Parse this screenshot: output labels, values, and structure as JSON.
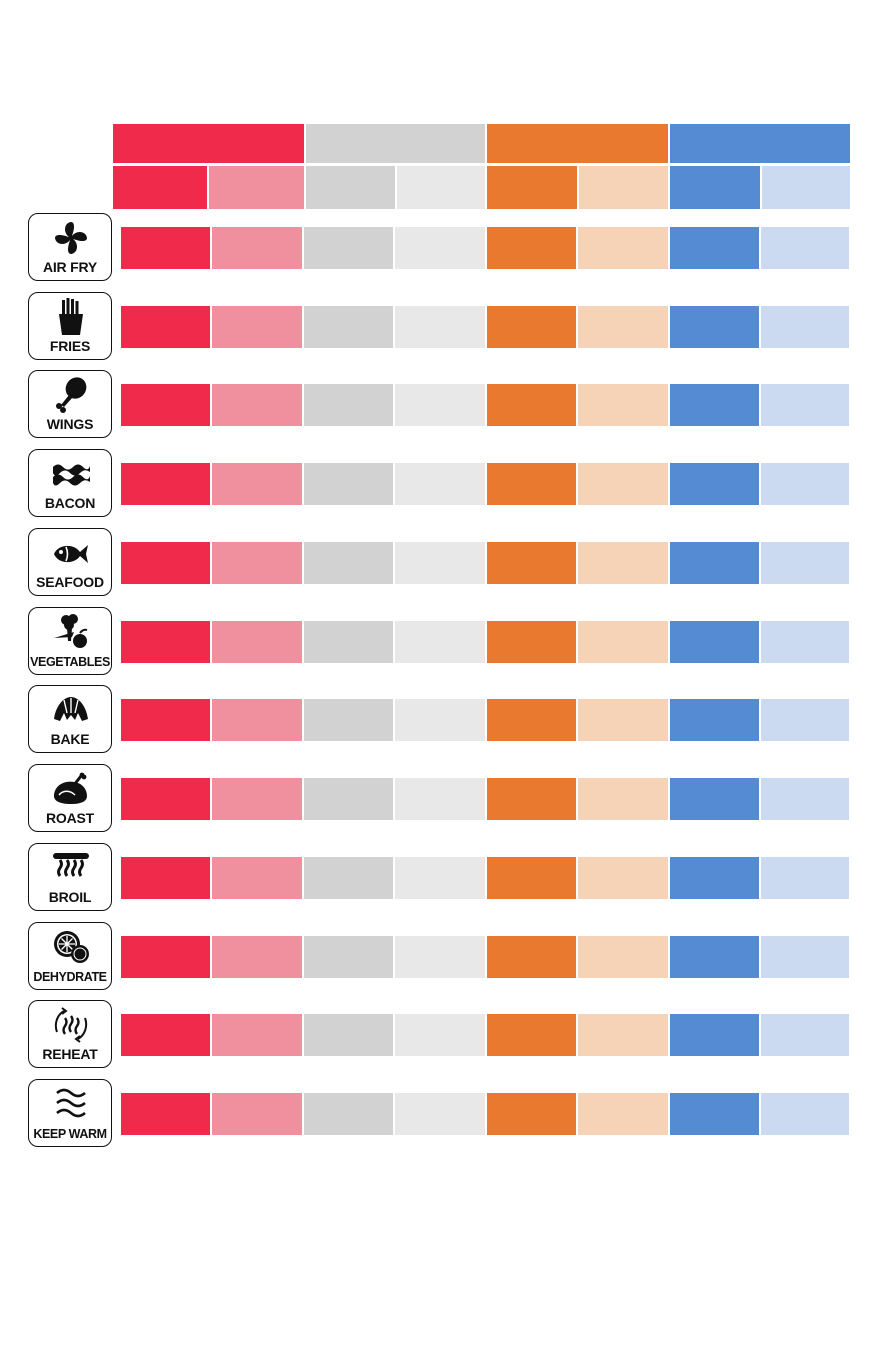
{
  "colors": {
    "red_dark": "#EF2A4A",
    "red_light": "#F0909E",
    "gray_dark": "#D2D2D2",
    "gray_light": "#E8E8E8",
    "orange_dark": "#E8792E",
    "orange_light": "#F6D3B7",
    "blue_dark": "#548BD2",
    "blue_light": "#CBD9F1"
  },
  "presets": [
    {
      "label": "AIR FRY",
      "icon": "fan-icon"
    },
    {
      "label": "FRIES",
      "icon": "fries-icon"
    },
    {
      "label": "WINGS",
      "icon": "chicken-leg-icon"
    },
    {
      "label": "BACON",
      "icon": "bacon-icon"
    },
    {
      "label": "SEAFOOD",
      "icon": "fish-icon"
    },
    {
      "label": "VEGETABLES",
      "icon": "vegetables-icon"
    },
    {
      "label": "BAKE",
      "icon": "croissant-icon"
    },
    {
      "label": "ROAST",
      "icon": "roast-chicken-icon"
    },
    {
      "label": "BROIL",
      "icon": "broil-element-icon"
    },
    {
      "label": "DEHYDRATE",
      "icon": "citrus-slice-icon"
    },
    {
      "label": "REHEAT",
      "icon": "reheat-icon"
    },
    {
      "label": "KEEP WARM",
      "icon": "keep-warm-icon"
    }
  ]
}
